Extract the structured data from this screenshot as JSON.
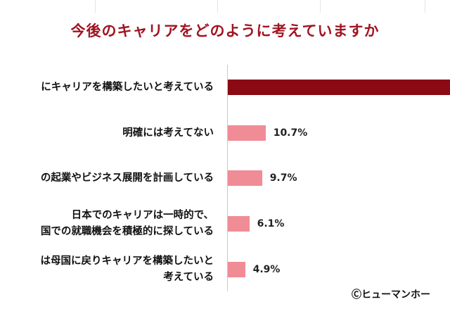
{
  "chart_data": {
    "type": "bar",
    "orientation": "horizontal",
    "title": "今後のキャリアをどのように考えていますか",
    "categories": [
      [
        "にキャリアを構築したいと考えている"
      ],
      [
        "明確には考えてない"
      ],
      [
        "の起業やビジネス展開を計画している"
      ],
      [
        "日本でのキャリアは一時的で、",
        "国での就職機会を積極的に探している"
      ],
      [
        "は母国に戻りキャリアを構築したいと",
        "考えている"
      ]
    ],
    "values": [
      null,
      10.7,
      9.7,
      6.1,
      4.9
    ],
    "value_labels": [
      "",
      "10.7%",
      "9.7%",
      "6.1%",
      "4.9%"
    ],
    "bar_colors": [
      "#8b0a14",
      "#f08c96",
      "#f08c96",
      "#f08c96",
      "#f08c96"
    ],
    "xlim": [
      0,
      60
    ],
    "grid": false,
    "legend": "none"
  },
  "credit": "Ⓒヒューマンホー"
}
